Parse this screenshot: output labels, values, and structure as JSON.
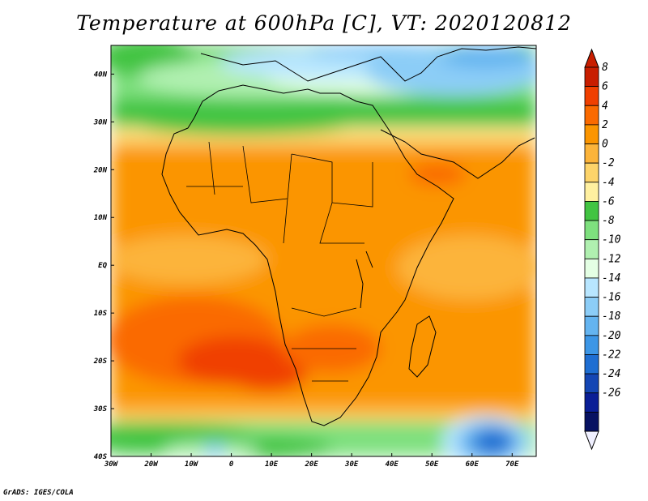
{
  "title": "Temperature at 600hPa [C], VT: 2020120812",
  "footer": "GrADS: IGES/COLA",
  "map": {
    "lon_range": [
      -30,
      76
    ],
    "lat_range": [
      -40,
      46
    ],
    "lon_ticks": [
      "30W",
      "20W",
      "10W",
      "0",
      "10E",
      "20E",
      "30E",
      "40E",
      "50E",
      "60E",
      "70E"
    ],
    "lat_ticks": [
      "40N",
      "30N",
      "20N",
      "10N",
      "EQ",
      "10S",
      "20S",
      "30S",
      "40S"
    ],
    "lon_tick_values": [
      -30,
      -20,
      -10,
      0,
      10,
      20,
      30,
      40,
      50,
      60,
      70
    ],
    "lat_tick_values": [
      40,
      30,
      20,
      10,
      0,
      -10,
      -20,
      -30,
      -40
    ]
  },
  "colorbar": {
    "labels": [
      "8",
      "6",
      "4",
      "2",
      "0",
      "-2",
      "-4",
      "-6",
      "-8",
      "-10",
      "-12",
      "-14",
      "-16",
      "-18",
      "-20",
      "-22",
      "-24",
      "-26"
    ],
    "colors": [
      "#c81e00",
      "#f04000",
      "#fa6a00",
      "#fb9500",
      "#fcb43a",
      "#fdd46a",
      "#fff0a0",
      "#42c442",
      "#7ee07e",
      "#b0f0b0",
      "#e4ffe4",
      "#b8e6ff",
      "#8ccdf7",
      "#64b4f0",
      "#3c96e6",
      "#1e6ed2",
      "#1446b4",
      "#0a1e96",
      "#071262"
    ],
    "top_color": "#c81e00",
    "bottom_color": "#f0f0ff"
  }
}
